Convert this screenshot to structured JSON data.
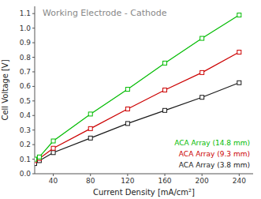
{
  "chart_data": {
    "type": "line",
    "title": "Working Electrode - Cathode",
    "x_label": "Current Density [mA/cm²]",
    "y_label": "Cell Voltage [V]",
    "x": [
      20,
      25,
      40,
      80,
      120,
      160,
      200,
      240
    ],
    "xlim": [
      20,
      255
    ],
    "ylim": [
      0.0,
      1.15
    ],
    "xticks": [
      40,
      80,
      120,
      160,
      200,
      240
    ],
    "yticks": [
      {
        "value": 0.0,
        "label": "0.0"
      },
      0.1,
      0.2,
      0.3,
      0.4,
      0.5,
      0.6,
      0.7,
      0.8,
      0.9,
      {
        "value": 1.0,
        "label": "1.0"
      },
      1.1
    ],
    "grid": false,
    "legend": "lower right",
    "marker": "square",
    "series": [
      {
        "name": "ACA Array (3.8 mm)",
        "color": "#1a1a1a",
        "values": [
          0.07,
          0.09,
          0.145,
          0.245,
          0.345,
          0.435,
          0.525,
          0.625
        ]
      },
      {
        "name": "ACA Array (9.3 mm)",
        "color": "#cc0000",
        "values": [
          0.09,
          0.105,
          0.175,
          0.31,
          0.445,
          0.575,
          0.695,
          0.835
        ]
      },
      {
        "name": "ACA Array (14.8 mm)",
        "color": "#00bb00",
        "values": [
          0.1,
          0.115,
          0.225,
          0.41,
          0.58,
          0.76,
          0.93,
          1.09
        ]
      }
    ]
  }
}
